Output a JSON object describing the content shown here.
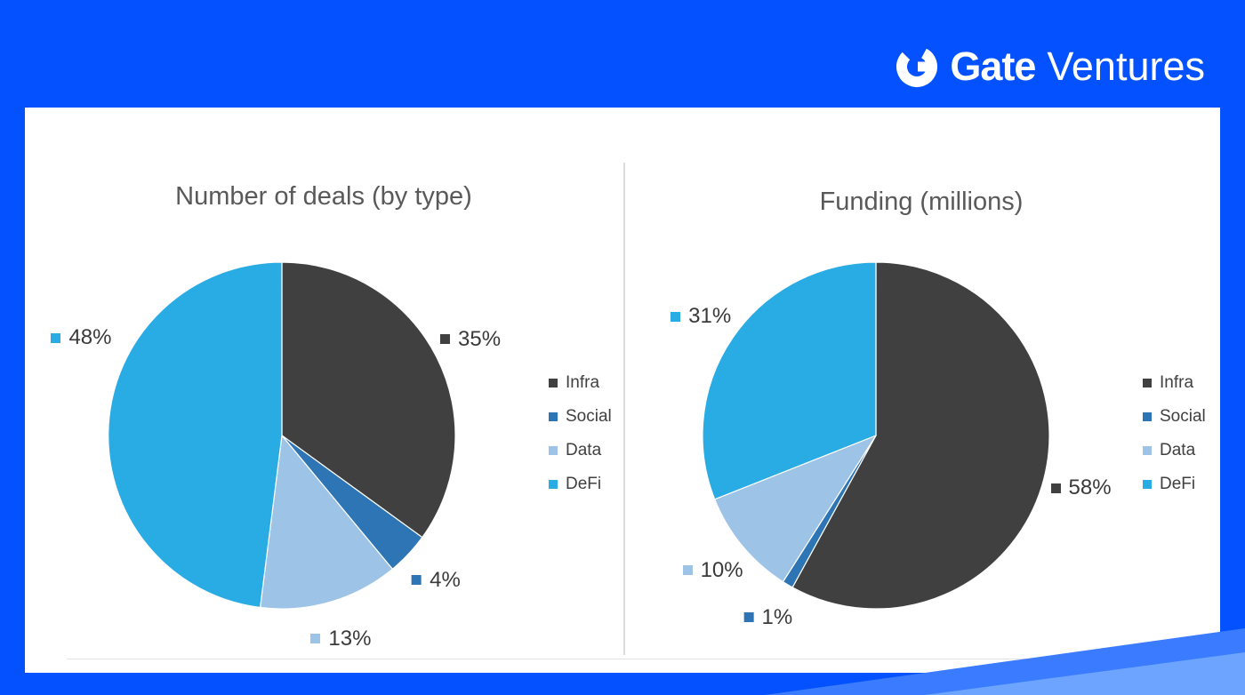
{
  "page": {
    "background": "#0452ff",
    "card_background": "#ffffff",
    "accent_ribbon": "#3b7bff",
    "accent_ribbon_light": "#6ca4ff",
    "title_color": "#595959"
  },
  "header": {
    "brand_bold": "Gate",
    "brand_light": "Ventures",
    "logo_icon": "gate-circle-g-icon"
  },
  "chart_data": [
    {
      "type": "pie",
      "title": "Number of deals (by type)",
      "categories": [
        "Infra",
        "Social",
        "Data",
        "DeFi"
      ],
      "values": [
        35,
        4,
        13,
        48
      ],
      "labels": [
        "35%",
        "4%",
        "13%",
        "48%"
      ],
      "unit": "%",
      "colors": [
        "#404040",
        "#2e75b6",
        "#9dc3e6",
        "#29abe3"
      ],
      "legend_position": "right",
      "start_angle_deg": 0,
      "direction": "clockwise"
    },
    {
      "type": "pie",
      "title": "Funding (millions)",
      "categories": [
        "Infra",
        "Social",
        "Data",
        "DeFi"
      ],
      "values": [
        58,
        1,
        10,
        31
      ],
      "labels": [
        "58%",
        "1%",
        "10%",
        "31%"
      ],
      "unit": "%",
      "colors": [
        "#404040",
        "#2e75b6",
        "#9dc3e6",
        "#29abe3"
      ],
      "legend_position": "right",
      "start_angle_deg": 0,
      "direction": "clockwise"
    }
  ]
}
